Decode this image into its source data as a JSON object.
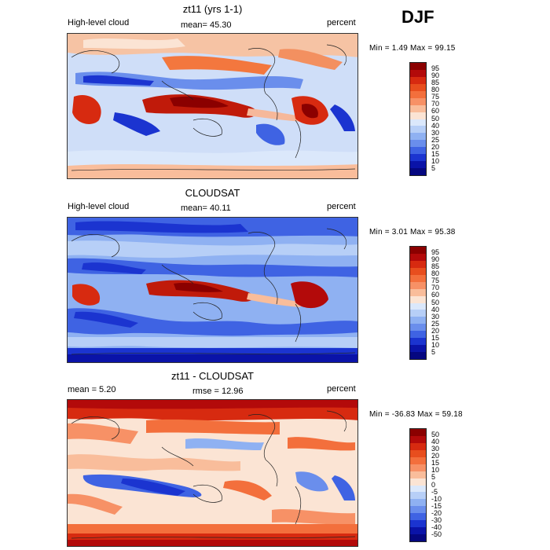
{
  "season": "DJF",
  "panels": [
    {
      "id": "model",
      "title": "zt11 (yrs 1-1)",
      "left_label": "High-level cloud",
      "center_label": "mean=  45.30",
      "right_label": "percent",
      "minmax": "Min =    1.49 Max =  99.15",
      "colorbar_labels": [
        "95",
        "90",
        "85",
        "80",
        "75",
        "70",
        "60",
        "50",
        "40",
        "30",
        "25",
        "20",
        "15",
        "10",
        "5"
      ],
      "colorbar_colors": [
        "#8b0000",
        "#b30a0a",
        "#d72a10",
        "#e84e1e",
        "#f36f3c",
        "#f79166",
        "#f9bd9b",
        "#fbe4d4",
        "#dbe8fb",
        "#b7cff7",
        "#8fb1f2",
        "#6a8eec",
        "#3f63e3",
        "#1b34d0",
        "#0a13a8",
        "#050780"
      ]
    },
    {
      "id": "obs",
      "title": "CLOUDSAT",
      "left_label": "High-level cloud",
      "center_label": "mean=  40.11",
      "right_label": "percent",
      "minmax": "Min =    3.01 Max =  95.38",
      "colorbar_labels": [
        "95",
        "90",
        "85",
        "80",
        "75",
        "70",
        "60",
        "50",
        "40",
        "30",
        "25",
        "20",
        "15",
        "10",
        "5"
      ],
      "colorbar_colors": [
        "#8b0000",
        "#b30a0a",
        "#d72a10",
        "#e84e1e",
        "#f36f3c",
        "#f79166",
        "#f9bd9b",
        "#fbe4d4",
        "#dbe8fb",
        "#b7cff7",
        "#8fb1f2",
        "#6a8eec",
        "#3f63e3",
        "#1b34d0",
        "#0a13a8",
        "#050780"
      ]
    },
    {
      "id": "diff",
      "title": "zt11 - CLOUDSAT",
      "left_label": "mean =    5.20",
      "center_label": "rmse =  12.96",
      "right_label": "percent",
      "minmax": "Min = -36.83 Max =  59.18",
      "colorbar_labels": [
        "50",
        "40",
        "30",
        "20",
        "15",
        "10",
        "5",
        "0",
        "-5",
        "-10",
        "-15",
        "-20",
        "-30",
        "-40",
        "-50"
      ],
      "colorbar_colors": [
        "#8b0000",
        "#b30a0a",
        "#d72a10",
        "#e84e1e",
        "#f36f3c",
        "#f79166",
        "#f9bd9b",
        "#fbe4d4",
        "#dbe8fb",
        "#b7cff7",
        "#8fb1f2",
        "#6a8eec",
        "#3f63e3",
        "#1b34d0",
        "#0a13a8",
        "#050780"
      ]
    }
  ]
}
